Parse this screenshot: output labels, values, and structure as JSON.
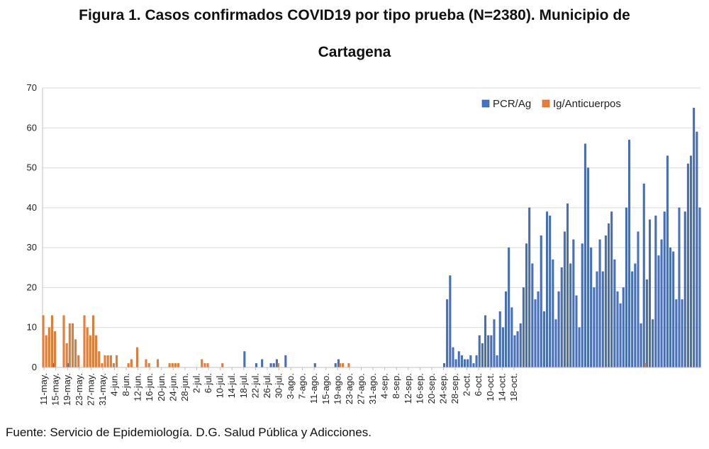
{
  "title_line1": "Figura 1. Casos confirmados COVID19 por tipo prueba (N=2380). Municipio de",
  "title_line2": "Cartagena",
  "source": "Fuente: Servicio de Epidemiología. D.G. Salud Pública y Adicciones.",
  "chart_data": {
    "type": "bar",
    "title": "Figura 1. Casos confirmados COVID19 por tipo prueba (N=2380). Municipio de Cartagena",
    "xlabel": "",
    "ylabel": "",
    "ylim": [
      0,
      70
    ],
    "yticks": [
      0,
      10,
      20,
      30,
      40,
      50,
      60,
      70
    ],
    "grid": true,
    "legend_position": "top-right",
    "start_date": "11-may.",
    "tick_labels": [
      "11-may.",
      "15-may.",
      "19-may.",
      "23-may.",
      "27-may.",
      "31-may.",
      "4-jun.",
      "8-jun.",
      "12-jun.",
      "16-jun.",
      "20-jun.",
      "24-jun.",
      "28-jun.",
      "2-jul.",
      "6-jul.",
      "10-jul.",
      "14-jul.",
      "18-jul.",
      "22-jul.",
      "26-jul.",
      "30-jul.",
      "3-ago.",
      "7-ago.",
      "11-ago.",
      "15-ago.",
      "19-ago.",
      "23-ago.",
      "27-ago.",
      "31-ago.",
      "4-sep.",
      "8-sep.",
      "12-sep.",
      "16-sep.",
      "20-sep.",
      "24-sep.",
      "28-sep.",
      "2-oct.",
      "6-oct.",
      "10-oct.",
      "14-oct.",
      "18-oct."
    ],
    "series": [
      {
        "name": "PCR/Ag",
        "color": "#4472C4",
        "values": [
          0,
          0,
          0,
          1,
          0,
          0,
          0,
          0,
          1,
          0,
          0,
          0,
          0,
          0,
          0,
          0,
          0,
          0,
          0,
          0,
          0,
          0,
          0,
          0,
          0,
          0,
          0,
          0,
          0,
          0,
          0,
          0,
          0,
          0,
          0,
          0,
          0,
          0,
          0,
          0,
          0,
          0,
          0,
          0,
          0,
          0,
          0,
          0,
          0,
          0,
          0,
          0,
          0,
          0,
          0,
          0,
          0,
          0,
          0,
          0,
          0,
          0,
          0,
          0,
          0,
          0,
          0,
          0,
          4,
          0,
          0,
          0,
          1,
          0,
          2,
          0,
          0,
          1,
          1,
          2,
          0,
          0,
          3,
          0,
          0,
          0,
          0,
          0,
          0,
          0,
          0,
          0,
          1,
          0,
          0,
          0,
          0,
          0,
          0,
          1,
          2,
          0,
          0,
          0,
          0,
          0,
          0,
          0,
          0,
          0,
          0,
          0,
          0,
          0,
          0,
          0,
          0,
          0,
          0,
          0,
          0,
          0,
          0,
          0,
          0,
          0,
          0,
          0,
          0,
          0,
          0,
          0,
          0,
          0,
          0,
          0,
          1,
          17,
          23,
          5,
          2,
          4,
          3,
          2,
          2,
          3,
          1,
          3,
          8,
          6,
          13,
          8,
          8,
          12,
          3,
          14,
          10,
          19,
          30,
          15,
          8,
          9,
          11,
          20,
          31,
          40,
          26,
          17,
          19,
          33,
          14,
          39,
          38,
          27,
          12,
          19,
          25,
          34,
          41,
          26,
          32,
          18,
          10,
          31,
          56,
          50,
          30,
          20,
          24,
          32,
          24,
          33,
          36,
          39,
          27,
          19,
          16,
          20,
          40,
          57,
          24,
          26,
          34,
          11,
          46,
          22,
          37,
          12,
          38,
          28,
          32,
          39,
          53,
          30,
          29,
          17,
          40,
          17,
          39,
          51,
          53,
          65,
          59,
          40
        ]
      },
      {
        "name": "Ig/Anticuerpos",
        "color": "#ED7D31",
        "values": [
          13,
          8,
          10,
          13,
          9,
          0,
          0,
          13,
          6,
          11,
          11,
          7,
          3,
          0,
          13,
          10,
          8,
          13,
          8,
          4,
          1,
          3,
          3,
          3,
          1,
          3,
          0,
          0,
          0,
          1,
          2,
          0,
          5,
          0,
          0,
          2,
          1,
          0,
          0,
          2,
          0,
          0,
          0,
          1,
          1,
          1,
          1,
          0,
          0,
          0,
          0,
          0,
          0,
          0,
          2,
          1,
          1,
          0,
          0,
          0,
          0,
          1,
          0,
          0,
          0,
          0,
          0,
          0,
          0,
          0,
          0,
          0,
          0,
          0,
          0,
          0,
          0,
          0,
          0,
          0,
          1,
          0,
          0,
          0,
          0,
          0,
          0,
          0,
          0,
          0,
          0,
          0,
          0,
          0,
          0,
          0,
          0,
          0,
          0,
          0,
          0,
          1,
          1,
          0,
          1,
          0,
          0,
          0,
          0,
          0,
          0,
          0,
          0,
          0,
          0,
          0,
          0,
          0,
          0,
          0,
          0,
          0,
          0,
          0,
          0,
          0,
          0,
          0,
          0,
          0,
          0,
          0,
          0,
          0,
          0,
          0,
          0,
          0,
          0,
          0,
          0,
          0,
          0,
          0,
          0,
          0,
          0,
          0,
          0,
          0,
          0,
          0,
          0,
          0,
          0,
          0,
          0,
          0,
          0,
          0,
          0,
          0,
          0,
          0,
          0,
          0,
          0,
          0,
          0,
          0,
          0,
          0,
          0,
          0,
          0,
          0,
          0,
          0,
          0,
          0,
          0,
          0,
          0,
          0,
          0,
          0,
          0,
          0,
          0,
          0,
          0,
          0,
          0,
          0,
          0,
          0,
          0,
          0,
          0,
          0,
          0,
          0,
          0,
          0,
          0,
          1,
          0,
          0,
          0,
          0,
          0,
          0,
          0,
          0,
          0,
          0,
          0,
          0,
          0,
          0,
          0,
          0,
          0,
          0,
          0,
          0,
          0,
          0,
          0,
          0,
          0,
          0,
          0,
          0,
          0,
          0,
          0,
          0,
          0,
          0,
          0,
          0,
          0,
          0,
          0,
          0,
          0,
          0,
          0,
          0,
          0,
          0,
          0,
          0,
          0
        ]
      }
    ]
  }
}
